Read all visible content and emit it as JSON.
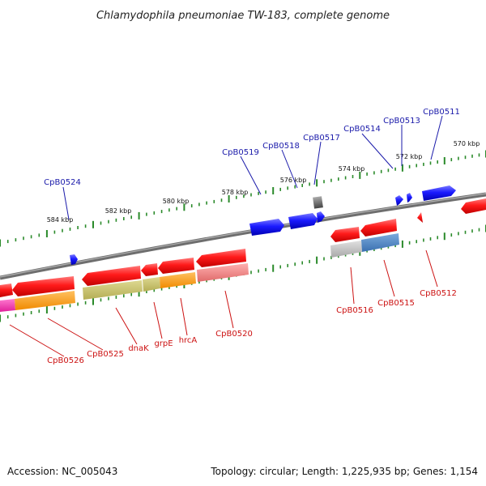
{
  "header": {
    "title": "Chlamydophila pneumoniae TW-183, complete genome"
  },
  "footer": {
    "accession": "Accession: NC_005043",
    "summary": "Topology: circular; Length: 1,225,935 bp; Genes: 1,154"
  },
  "colors": {
    "backbone": "#808080",
    "tick": "#2a8a2a",
    "forward_gene": "#1a1aff",
    "reverse_gene": "#ff1a1a",
    "forward_label": "#1a1aaa",
    "reverse_label": "#cc1111"
  },
  "ruler": {
    "ticks": [
      {
        "label": "584 kbp"
      },
      {
        "label": "582 kbp"
      },
      {
        "label": "580 kbp"
      },
      {
        "label": "578 kbp"
      },
      {
        "label": "576 kbp"
      },
      {
        "label": "574 kbp"
      },
      {
        "label": "572 kbp"
      },
      {
        "label": "570 kbp"
      }
    ]
  },
  "genes": {
    "forward_labels": [
      {
        "name": "CpB0524"
      },
      {
        "name": "CpB0519"
      },
      {
        "name": "CpB0518"
      },
      {
        "name": "CpB0517"
      },
      {
        "name": "CpB0514"
      },
      {
        "name": "CpB0513"
      },
      {
        "name": "CpB0511"
      }
    ],
    "reverse_labels": [
      {
        "name": "CpB0526"
      },
      {
        "name": "CpB0525"
      },
      {
        "name": "dnaK"
      },
      {
        "name": "grpE"
      },
      {
        "name": "hrcA"
      },
      {
        "name": "CpB0520"
      },
      {
        "name": "CpB0516"
      },
      {
        "name": "CpB0515"
      },
      {
        "name": "CpB0512"
      }
    ]
  }
}
